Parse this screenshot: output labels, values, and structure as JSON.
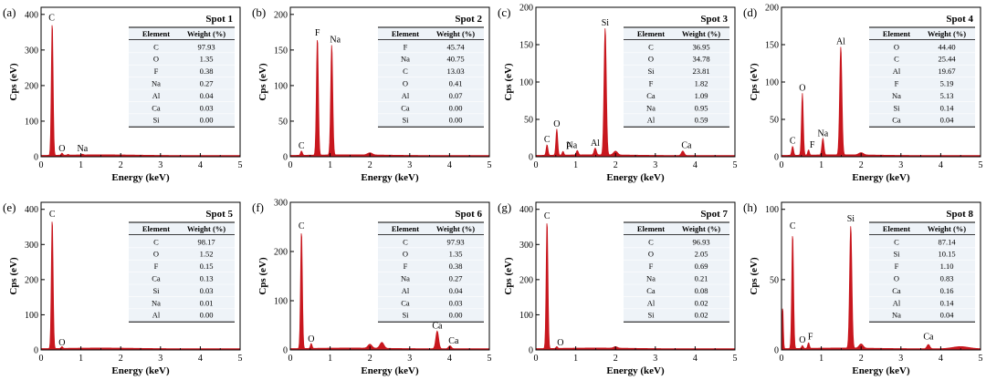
{
  "colors": {
    "spectrum": "#c8171e",
    "table_bg": "#eef3f8",
    "axis": "#000000"
  },
  "chart_data": [
    {
      "type": "area",
      "panel_label": "(a)",
      "title": "Spot 1",
      "xlabel": "Energy (keV)",
      "ylabel": "Cps (eV)",
      "xlim": [
        0,
        5
      ],
      "ylim": [
        0,
        420
      ],
      "xticks": [
        0,
        1,
        2,
        3,
        4,
        5
      ],
      "yticks": [
        0,
        100,
        200,
        300,
        400
      ],
      "peaks": [
        {
          "x": 0.28,
          "h": 375,
          "w": 0.022
        },
        {
          "x": 0.525,
          "h": 6,
          "w": 0.02
        },
        {
          "x": 1.04,
          "h": 2,
          "w": 0.025
        },
        {
          "x": 0.68,
          "h": 2,
          "w": 0.02
        }
      ],
      "peak_labels": [
        {
          "element": "C",
          "x": 0.28,
          "y": 378,
          "anchor": "start",
          "dx": -4
        },
        {
          "element": "O",
          "x": 0.525,
          "y": 10,
          "anchor": "middle",
          "dx": 0
        },
        {
          "element": "Na",
          "x": 1.04,
          "y": 10,
          "anchor": "middle",
          "dx": 0
        }
      ],
      "table": {
        "headers": [
          "Element",
          "Weight (%)"
        ],
        "rows": [
          [
            "C",
            "97.93"
          ],
          [
            "O",
            "1.35"
          ],
          [
            "F",
            "0.38"
          ],
          [
            "Na",
            "0.27"
          ],
          [
            "Al",
            "0.04"
          ],
          [
            "Ca",
            "0.03"
          ],
          [
            "Si",
            "0.00"
          ]
        ]
      }
    },
    {
      "type": "area",
      "panel_label": "(b)",
      "title": "Spot 2",
      "xlabel": "Energy (keV)",
      "ylabel": "Cps (eV)",
      "xlim": [
        0,
        5
      ],
      "ylim": [
        0,
        210
      ],
      "xticks": [
        0,
        1,
        2,
        3,
        4,
        5
      ],
      "yticks": [
        0,
        50,
        100,
        150,
        200
      ],
      "peaks": [
        {
          "x": 0.28,
          "h": 6,
          "w": 0.022
        },
        {
          "x": 0.68,
          "h": 165,
          "w": 0.024
        },
        {
          "x": 1.04,
          "h": 155,
          "w": 0.025
        },
        {
          "x": 2.0,
          "h": 3,
          "w": 0.06
        }
      ],
      "peak_labels": [
        {
          "element": "C",
          "x": 0.28,
          "y": 9,
          "anchor": "middle",
          "dx": 0
        },
        {
          "element": "F",
          "x": 0.68,
          "y": 168,
          "anchor": "middle",
          "dx": 0
        },
        {
          "element": "Na",
          "x": 1.04,
          "y": 158,
          "anchor": "start",
          "dx": -2
        }
      ],
      "table": {
        "headers": [
          "Element",
          "Weight (%)"
        ],
        "rows": [
          [
            "F",
            "45.74"
          ],
          [
            "Na",
            "40.75"
          ],
          [
            "C",
            "13.03"
          ],
          [
            "O",
            "0.41"
          ],
          [
            "Al",
            "0.07"
          ],
          [
            "Ca",
            "0.00"
          ],
          [
            "Si",
            "0.00"
          ]
        ]
      }
    },
    {
      "type": "area",
      "panel_label": "(c)",
      "title": "Spot 3",
      "xlabel": "Energy (keV)",
      "ylabel": "Cps (eV)",
      "xlim": [
        0,
        5
      ],
      "ylim": [
        0,
        200
      ],
      "xticks": [
        0,
        1,
        2,
        3,
        4,
        5
      ],
      "yticks": [
        0,
        50,
        100,
        150,
        200
      ],
      "peaks": [
        {
          "x": 0.28,
          "h": 14,
          "w": 0.022
        },
        {
          "x": 0.525,
          "h": 35,
          "w": 0.022
        },
        {
          "x": 0.68,
          "h": 5,
          "w": 0.02
        },
        {
          "x": 1.04,
          "h": 6,
          "w": 0.025
        },
        {
          "x": 1.49,
          "h": 9,
          "w": 0.028
        },
        {
          "x": 1.74,
          "h": 170,
          "w": 0.028
        },
        {
          "x": 2.0,
          "h": 5,
          "w": 0.05
        },
        {
          "x": 3.69,
          "h": 6,
          "w": 0.035
        }
      ],
      "peak_labels": [
        {
          "element": "C",
          "x": 0.28,
          "y": 17,
          "anchor": "middle",
          "dx": 0
        },
        {
          "element": "O",
          "x": 0.525,
          "y": 38,
          "anchor": "middle",
          "dx": 0
        },
        {
          "element": "F",
          "x": 0.68,
          "y": 8,
          "anchor": "middle",
          "dx": 6
        },
        {
          "element": "Na",
          "x": 1.04,
          "y": 9,
          "anchor": "middle",
          "dx": -6
        },
        {
          "element": "Al",
          "x": 1.49,
          "y": 12,
          "anchor": "middle",
          "dx": 0
        },
        {
          "element": "Si",
          "x": 1.74,
          "y": 173,
          "anchor": "middle",
          "dx": 0
        },
        {
          "element": "Ca",
          "x": 3.69,
          "y": 9,
          "anchor": "middle",
          "dx": 4
        }
      ],
      "table": {
        "headers": [
          "Element",
          "Weight (%)"
        ],
        "rows": [
          [
            "C",
            "36.95"
          ],
          [
            "O",
            "34.78"
          ],
          [
            "Si",
            "23.81"
          ],
          [
            "F",
            "1.82"
          ],
          [
            "Ca",
            "1.09"
          ],
          [
            "Na",
            "0.95"
          ],
          [
            "Al",
            "0.59"
          ]
        ]
      }
    },
    {
      "type": "area",
      "panel_label": "(d)",
      "title": "Spot 4",
      "xlabel": "Energy (keV)",
      "ylabel": "Cps (eV)",
      "xlim": [
        0,
        5
      ],
      "ylim": [
        0,
        200
      ],
      "xticks": [
        0,
        1,
        2,
        3,
        4,
        5
      ],
      "yticks": [
        0,
        50,
        100,
        150,
        200
      ],
      "peaks": [
        {
          "x": 0.28,
          "h": 12,
          "w": 0.022
        },
        {
          "x": 0.525,
          "h": 83,
          "w": 0.022
        },
        {
          "x": 0.68,
          "h": 7,
          "w": 0.02
        },
        {
          "x": 1.04,
          "h": 22,
          "w": 0.025
        },
        {
          "x": 1.49,
          "h": 145,
          "w": 0.028
        },
        {
          "x": 2.0,
          "h": 3,
          "w": 0.06
        }
      ],
      "peak_labels": [
        {
          "element": "C",
          "x": 0.28,
          "y": 15,
          "anchor": "middle",
          "dx": 0
        },
        {
          "element": "O",
          "x": 0.525,
          "y": 86,
          "anchor": "middle",
          "dx": 0
        },
        {
          "element": "F",
          "x": 0.68,
          "y": 10,
          "anchor": "middle",
          "dx": 4
        },
        {
          "element": "Na",
          "x": 1.04,
          "y": 25,
          "anchor": "middle",
          "dx": 0
        },
        {
          "element": "Al",
          "x": 1.49,
          "y": 148,
          "anchor": "middle",
          "dx": 0
        }
      ],
      "table": {
        "headers": [
          "Element",
          "Weight (%)"
        ],
        "rows": [
          [
            "O",
            "44.40"
          ],
          [
            "C",
            "25.44"
          ],
          [
            "Al",
            "19.67"
          ],
          [
            "F",
            "5.19"
          ],
          [
            "Na",
            "5.13"
          ],
          [
            "Si",
            "0.14"
          ],
          [
            "Ca",
            "0.04"
          ]
        ]
      }
    },
    {
      "type": "area",
      "panel_label": "(e)",
      "title": "Spot 5",
      "xlabel": "Energy (keV)",
      "ylabel": "Cps (eV)",
      "xlim": [
        0,
        5
      ],
      "ylim": [
        0,
        420
      ],
      "xticks": [
        0,
        1,
        2,
        3,
        4,
        5
      ],
      "yticks": [
        0,
        100,
        200,
        300,
        400
      ],
      "peaks": [
        {
          "x": 0.28,
          "h": 370,
          "w": 0.022
        },
        {
          "x": 0.525,
          "h": 5,
          "w": 0.02
        }
      ],
      "peak_labels": [
        {
          "element": "C",
          "x": 0.28,
          "y": 373,
          "anchor": "middle",
          "dx": 0
        },
        {
          "element": "O",
          "x": 0.525,
          "y": 8,
          "anchor": "middle",
          "dx": 0
        }
      ],
      "table": {
        "headers": [
          "Element",
          "Weight (%)"
        ],
        "rows": [
          [
            "C",
            "98.17"
          ],
          [
            "O",
            "1.52"
          ],
          [
            "F",
            "0.15"
          ],
          [
            "Ca",
            "0.13"
          ],
          [
            "Si",
            "0.03"
          ],
          [
            "Na",
            "0.01"
          ],
          [
            "Al",
            "0.00"
          ]
        ]
      }
    },
    {
      "type": "area",
      "panel_label": "(f)",
      "title": "Spot 6",
      "xlabel": "Energy (keV)",
      "ylabel": "Cps (eV)",
      "xlim": [
        0,
        5
      ],
      "ylim": [
        0,
        300
      ],
      "xticks": [
        0,
        1,
        2,
        3,
        4,
        5
      ],
      "yticks": [
        0,
        100,
        200,
        300
      ],
      "peaks": [
        {
          "x": 0.28,
          "h": 240,
          "w": 0.022
        },
        {
          "x": 0.525,
          "h": 10,
          "w": 0.02
        },
        {
          "x": 2.0,
          "h": 8,
          "w": 0.05
        },
        {
          "x": 2.3,
          "h": 12,
          "w": 0.05
        },
        {
          "x": 3.69,
          "h": 36,
          "w": 0.035
        },
        {
          "x": 4.01,
          "h": 6,
          "w": 0.035
        }
      ],
      "peak_labels": [
        {
          "element": "C",
          "x": 0.28,
          "y": 243,
          "anchor": "middle",
          "dx": 0
        },
        {
          "element": "O",
          "x": 0.525,
          "y": 13,
          "anchor": "middle",
          "dx": 0
        },
        {
          "element": "Ca",
          "x": 3.69,
          "y": 40,
          "anchor": "middle",
          "dx": 0
        },
        {
          "element": "Ca",
          "x": 4.01,
          "y": 9,
          "anchor": "middle",
          "dx": 4
        }
      ],
      "table": {
        "headers": [
          "Element",
          "Weight (%)"
        ],
        "rows": [
          [
            "C",
            "97.93"
          ],
          [
            "O",
            "1.35"
          ],
          [
            "F",
            "0.38"
          ],
          [
            "Na",
            "0.27"
          ],
          [
            "Al",
            "0.04"
          ],
          [
            "Ca",
            "0.03"
          ],
          [
            "Si",
            "0.00"
          ]
        ]
      }
    },
    {
      "type": "area",
      "panel_label": "(g)",
      "title": "Spot 7",
      "xlabel": "Energy (keV)",
      "ylabel": "Cps (eV)",
      "xlim": [
        0,
        5
      ],
      "ylim": [
        0,
        420
      ],
      "xticks": [
        0,
        1,
        2,
        3,
        4,
        5
      ],
      "yticks": [
        0,
        100,
        200,
        300,
        400
      ],
      "peaks": [
        {
          "x": 0.28,
          "h": 365,
          "w": 0.022
        },
        {
          "x": 0.525,
          "h": 5,
          "w": 0.02
        },
        {
          "x": 2.0,
          "h": 4,
          "w": 0.05
        }
      ],
      "peak_labels": [
        {
          "element": "C",
          "x": 0.28,
          "y": 368,
          "anchor": "middle",
          "dx": 0
        },
        {
          "element": "O",
          "x": 0.525,
          "y": 8,
          "anchor": "middle",
          "dx": 4
        }
      ],
      "table": {
        "headers": [
          "Element",
          "Weight (%)"
        ],
        "rows": [
          [
            "C",
            "96.93"
          ],
          [
            "O",
            "2.05"
          ],
          [
            "F",
            "0.69"
          ],
          [
            "Na",
            "0.21"
          ],
          [
            "Ca",
            "0.08"
          ],
          [
            "Al",
            "0.02"
          ],
          [
            "Si",
            "0.02"
          ]
        ]
      }
    },
    {
      "type": "area",
      "panel_label": "(h)",
      "title": "Spot 8",
      "xlabel": "Energy (keV)",
      "ylabel": "Cps (eV)",
      "xlim": [
        0,
        5
      ],
      "ylim": [
        0,
        105
      ],
      "xticks": [
        0,
        1,
        2,
        3,
        4,
        5
      ],
      "yticks": [
        0,
        50,
        100
      ],
      "peaks": [
        {
          "x": 0.03,
          "h": 30,
          "w": 0.015
        },
        {
          "x": 0.28,
          "h": 82,
          "w": 0.022
        },
        {
          "x": 0.525,
          "h": 2,
          "w": 0.02
        },
        {
          "x": 0.68,
          "h": 4,
          "w": 0.02
        },
        {
          "x": 1.74,
          "h": 87,
          "w": 0.028
        },
        {
          "x": 2.0,
          "h": 3,
          "w": 0.05
        },
        {
          "x": 3.69,
          "h": 3,
          "w": 0.035
        },
        {
          "x": 4.5,
          "h": 1.5,
          "w": 0.2
        }
      ],
      "peak_labels": [
        {
          "element": "C",
          "x": 0.28,
          "y": 85,
          "anchor": "middle",
          "dx": 0
        },
        {
          "element": "O",
          "x": 0.525,
          "y": 4,
          "anchor": "middle",
          "dx": 0
        },
        {
          "element": "F",
          "x": 0.68,
          "y": 6,
          "anchor": "middle",
          "dx": 2
        },
        {
          "element": "Si",
          "x": 1.74,
          "y": 90,
          "anchor": "middle",
          "dx": 0
        },
        {
          "element": "Ca",
          "x": 3.69,
          "y": 6,
          "anchor": "middle",
          "dx": 0
        }
      ],
      "table": {
        "headers": [
          "Element",
          "Weight (%)"
        ],
        "rows": [
          [
            "C",
            "87.14"
          ],
          [
            "Si",
            "10.15"
          ],
          [
            "F",
            "1.10"
          ],
          [
            "O",
            "0.83"
          ],
          [
            "Ca",
            "0.16"
          ],
          [
            "Al",
            "0.14"
          ],
          [
            "Na",
            "0.04"
          ]
        ]
      }
    }
  ]
}
